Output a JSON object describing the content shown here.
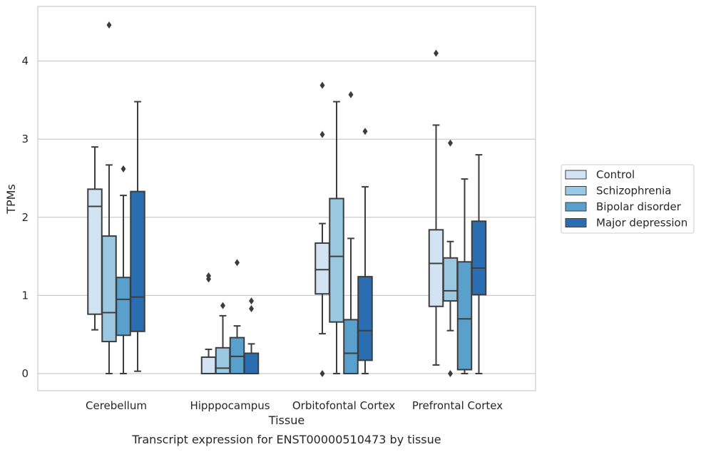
{
  "chart_data": {
    "type": "box",
    "title": "",
    "caption": "Transcript expression for ENST00000510473 by tissue",
    "xlabel": "Tissue",
    "ylabel": "TPMs",
    "ylim": [
      -0.22,
      4.7
    ],
    "yticks": [
      "0",
      "1",
      "2",
      "3",
      "4"
    ],
    "grid": "horizontal",
    "legend_position": "right",
    "categories": [
      "Cerebellum",
      "Hipppocampus",
      "Orbitofontal Cortex",
      "Prefrontal Cortex"
    ],
    "series": [
      {
        "name": "Control",
        "color": "#d2e3f3",
        "boxes": [
          {
            "whislo": 0.56,
            "q1": 0.76,
            "med": 2.14,
            "q3": 2.36,
            "whishi": 2.9,
            "fliers": []
          },
          {
            "whislo": 0.0,
            "q1": 0.0,
            "med": 0.0,
            "q3": 0.21,
            "whishi": 0.31,
            "fliers": [
              1.21,
              1.25
            ]
          },
          {
            "whislo": 0.51,
            "q1": 1.02,
            "med": 1.33,
            "q3": 1.67,
            "whishi": 1.92,
            "fliers": [
              0.0,
              3.06,
              3.69
            ]
          },
          {
            "whislo": 0.11,
            "q1": 0.86,
            "med": 1.41,
            "q3": 1.84,
            "whishi": 3.18,
            "fliers": [
              4.1
            ]
          }
        ]
      },
      {
        "name": "Schizophrenia",
        "color": "#9ac8e0",
        "boxes": [
          {
            "whislo": 0.0,
            "q1": 0.41,
            "med": 0.78,
            "q3": 1.76,
            "whishi": 2.67,
            "fliers": [
              4.46
            ]
          },
          {
            "whislo": 0.0,
            "q1": 0.0,
            "med": 0.07,
            "q3": 0.33,
            "whishi": 0.74,
            "fliers": [
              0.87
            ]
          },
          {
            "whislo": 0.0,
            "q1": 0.66,
            "med": 1.5,
            "q3": 2.24,
            "whishi": 3.48,
            "fliers": []
          },
          {
            "whislo": 0.55,
            "q1": 0.93,
            "med": 1.06,
            "q3": 1.48,
            "whishi": 1.69,
            "fliers": [
              0.0,
              2.95
            ]
          }
        ]
      },
      {
        "name": "Bipolar disorder",
        "color": "#5aa0cd",
        "boxes": [
          {
            "whislo": 0.0,
            "q1": 0.49,
            "med": 0.95,
            "q3": 1.23,
            "whishi": 2.28,
            "fliers": [
              2.62
            ]
          },
          {
            "whislo": 0.0,
            "q1": 0.0,
            "med": 0.22,
            "q3": 0.46,
            "whishi": 0.61,
            "fliers": [
              1.42
            ]
          },
          {
            "whislo": 0.0,
            "q1": 0.0,
            "med": 0.26,
            "q3": 0.69,
            "whishi": 1.73,
            "fliers": [
              3.57
            ]
          },
          {
            "whislo": 0.0,
            "q1": 0.05,
            "med": 0.7,
            "q3": 1.43,
            "whishi": 2.49,
            "fliers": []
          }
        ]
      },
      {
        "name": "Major depression",
        "color": "#2a6eb1",
        "boxes": [
          {
            "whislo": 0.03,
            "q1": 0.54,
            "med": 0.98,
            "q3": 2.33,
            "whishi": 3.48,
            "fliers": []
          },
          {
            "whislo": 0.0,
            "q1": 0.0,
            "med": 0.0,
            "q3": 0.26,
            "whishi": 0.38,
            "fliers": [
              0.83,
              0.93
            ]
          },
          {
            "whislo": 0.0,
            "q1": 0.17,
            "med": 0.55,
            "q3": 1.24,
            "whishi": 2.39,
            "fliers": [
              3.1
            ]
          },
          {
            "whislo": 0.0,
            "q1": 1.01,
            "med": 1.35,
            "q3": 1.95,
            "whishi": 2.8,
            "fliers": []
          }
        ]
      }
    ]
  }
}
